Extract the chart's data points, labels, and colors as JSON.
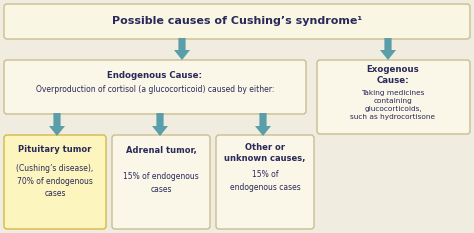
{
  "title": "Possible causes of Cushing’s syndrome¹",
  "bg_color": "#f0ece0",
  "box_bg_light": "#faf6e8",
  "box_bg_yellow": "#fdf5be",
  "border_color": "#c8be90",
  "yellow_border": "#d4b84a",
  "arrow_color": "#5a9eaa",
  "title_color": "#2a2a5a",
  "text_color": "#2a2a5a",
  "endogenous_title": "Endogenous Cause:",
  "endogenous_body": "Overproduction of cortisol (a glucocorticoid) caused by either:",
  "exogenous_title": "Exogenous\nCause:",
  "exogenous_body": "Taking medicines\ncontaining\nglucocorticoids,\nsuch as hydrocortisone",
  "pituitary_title": "Pituitary tumor",
  "pituitary_body": "(Cushing’s disease),\n70% of endogenous\ncases",
  "adrenal_title": "Adrenal tumor,",
  "adrenal_body": "15% of endogenous\ncases",
  "other_title": "Other or\nunknown causes,",
  "other_body": "15% of\nendogenous cases"
}
